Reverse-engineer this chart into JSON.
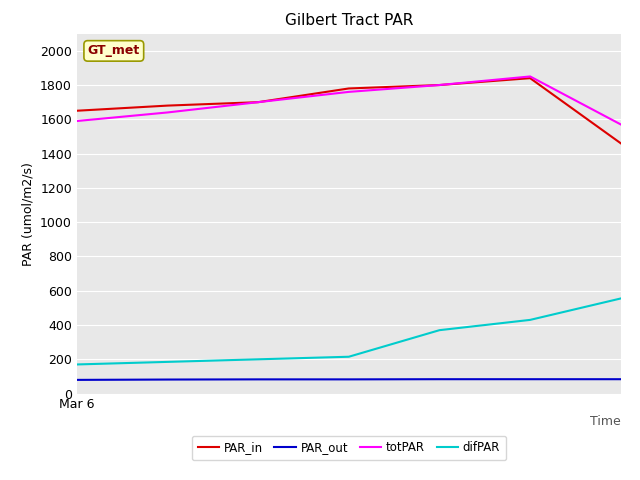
{
  "title": "Gilbert Tract PAR",
  "xlabel": "Time",
  "ylabel": "PAR (umol/m2/s)",
  "x_values": [
    0,
    1,
    2,
    3,
    4,
    5,
    6
  ],
  "PAR_in": [
    1650,
    1680,
    1700,
    1780,
    1800,
    1840,
    1460
  ],
  "PAR_out": [
    80,
    82,
    83,
    83,
    84,
    84,
    84
  ],
  "totPAR": [
    1590,
    1640,
    1700,
    1760,
    1800,
    1850,
    1570
  ],
  "difPAR": [
    170,
    185,
    200,
    215,
    370,
    430,
    555
  ],
  "color_PAR_in": "#dd0000",
  "color_PAR_out": "#0000cc",
  "color_totPAR": "#ff00ff",
  "color_difPAR": "#00cccc",
  "ylim": [
    0,
    2100
  ],
  "yticks": [
    0,
    200,
    400,
    600,
    800,
    1000,
    1200,
    1400,
    1600,
    1800,
    2000
  ],
  "x_label_start": "Mar 6",
  "legend_labels": [
    "PAR_in",
    "PAR_out",
    "totPAR",
    "difPAR"
  ],
  "annotation_text": "GT_met",
  "bg_color": "#e8e8e8",
  "grid_color": "#ffffff",
  "title_fontsize": 11,
  "tick_fontsize": 9,
  "axis_label_fontsize": 9
}
